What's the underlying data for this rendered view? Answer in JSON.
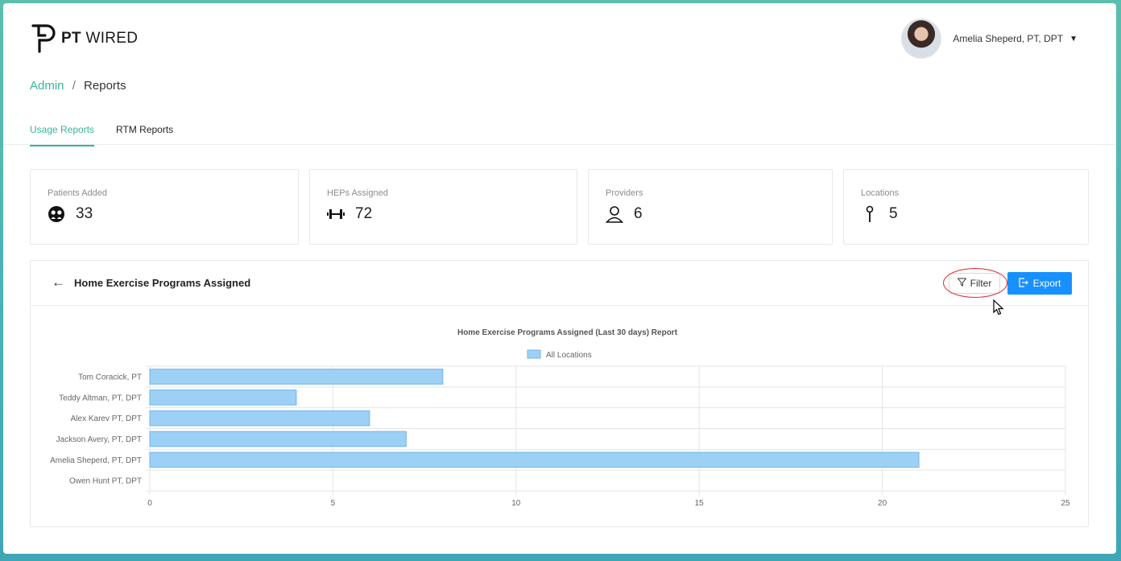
{
  "app": {
    "logo_bold": "PT",
    "logo_light": " WIRED"
  },
  "user": {
    "name": "Amelia Sheperd, PT, DPT",
    "caret": "▼"
  },
  "breadcrumb": {
    "root": "Admin",
    "separator": "/",
    "current": "Reports"
  },
  "tabs": [
    {
      "label": "Usage Reports",
      "active": true
    },
    {
      "label": "RTM Reports",
      "active": false
    }
  ],
  "stats": [
    {
      "label": "Patients Added",
      "value": "33",
      "icon": "patients-icon"
    },
    {
      "label": "HEPs Assigned",
      "value": "72",
      "icon": "dumbbell-icon"
    },
    {
      "label": "Providers",
      "value": "6",
      "icon": "user-icon"
    },
    {
      "label": "Locations",
      "value": "5",
      "icon": "pin-icon"
    }
  ],
  "panel": {
    "back_icon": "←",
    "title": "Home Exercise Programs Assigned",
    "filter_label": "Filter",
    "export_label": "Export",
    "accent_color": "#1890ff",
    "highlight_color": "#d62b2b"
  },
  "chart_data": {
    "type": "bar",
    "orientation": "horizontal",
    "title": "Home Exercise Programs Assigned (Last 30 days) Report",
    "categories": [
      "Tom Coracick, PT",
      "Teddy Altman, PT, DPT",
      "Alex Karev PT, DPT",
      "Jackson Avery, PT, DPT",
      "Amelia Sheperd, PT, DPT",
      "Owen Hunt PT, DPT"
    ],
    "series": [
      {
        "name": "All Locations",
        "values": [
          8,
          4,
          6,
          7,
          21,
          0
        ],
        "color": "#9dd0f5",
        "border": "#6fb6ec"
      }
    ],
    "xlim": [
      0,
      25
    ],
    "xticks": [
      0,
      5,
      10,
      15,
      20,
      25
    ],
    "grid": true,
    "legend": "top-center"
  }
}
